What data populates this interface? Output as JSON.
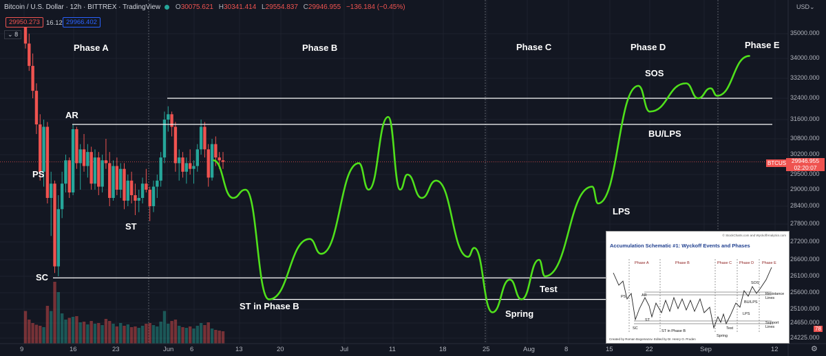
{
  "header": {
    "title": "Bitcoin / U.S. Dollar · 12h · BITTREX · TradingView",
    "ohlc": [
      {
        "key": "O",
        "value": "30075.621"
      },
      {
        "key": "H",
        "value": "30341.414"
      },
      {
        "key": "L",
        "value": "29554.837"
      },
      {
        "key": "C",
        "value": "29946.955"
      }
    ],
    "change": "−136.184 (−0.45%)",
    "sell_price": "29950.273",
    "spread": "16.129",
    "buy_price": "29966.402",
    "indicator_count": "8"
  },
  "axis": {
    "currency": "USD",
    "price_label": "29946.955",
    "countdown": "02:20:07",
    "symbol_tag": "BTCUSD",
    "volume_tag": "78"
  },
  "colors": {
    "background": "#131722",
    "up_candle": "#26a69a",
    "down_candle": "#ef5350",
    "projection": "#4fe01b",
    "level_line": "#ffffff"
  },
  "annotations": {
    "phases": [
      "Phase A",
      "Phase B",
      "Phase C",
      "Phase D",
      "Phase E"
    ],
    "events": {
      "ps": "PS",
      "sc": "SC",
      "ar": "AR",
      "st": "ST",
      "st_phase_b": "ST in Phase B",
      "spring": "Spring",
      "test": "Test",
      "lps": "LPS",
      "bu_lps": "BU/LPS",
      "sos": "SOS"
    }
  },
  "inset": {
    "title": "Accumulation Schematic #1: Wyckoff Events and Phases",
    "source": "© StockCharts.com and WyckoffAnalytics.com",
    "footer": "Created by Roman Bogomazov. Edited by Dr. Henry O. Pruden",
    "phases": [
      "Phase A",
      "Phase B",
      "Phase C",
      "Phase D",
      "Phase E"
    ],
    "labels": [
      "PS",
      "SC",
      "AR",
      "ST",
      "ST in Phase B",
      "Spring",
      "Test",
      "LPS",
      "BU/LPS",
      "SOS",
      "Resistance Lines",
      "Support Lines"
    ]
  },
  "chart_data": {
    "type": "line",
    "series_kind": "candlestick with hand-drawn projection",
    "ylim": [
      24200,
      35600
    ],
    "yticks": [
      24225,
      24650,
      25100,
      25600,
      26100,
      26600,
      27200,
      27800,
      28400,
      29000,
      29500,
      30200,
      30800,
      31600,
      32400,
      33200,
      34000,
      35000
    ],
    "x_ticks": [
      "9",
      "16",
      "23",
      "Jun",
      "6",
      "13",
      "20",
      "Jul",
      "11",
      "18",
      "25",
      "Aug",
      "8",
      "15",
      "22",
      "Sep",
      "12"
    ],
    "levels": [
      {
        "value": 32400
      },
      {
        "value": 31400
      },
      {
        "value": 26050
      },
      {
        "value": 25400
      }
    ],
    "current_price": 29946.955,
    "candles": [
      {
        "o": 35500,
        "h": 35600,
        "l": 34400,
        "c": 34600
      },
      {
        "o": 34600,
        "h": 35000,
        "l": 33500,
        "c": 33700
      },
      {
        "o": 33700,
        "h": 34200,
        "l": 32400,
        "c": 32700
      },
      {
        "o": 32700,
        "h": 33000,
        "l": 31000,
        "c": 31400
      },
      {
        "o": 31400,
        "h": 31800,
        "l": 29300,
        "c": 29600
      },
      {
        "o": 29600,
        "h": 31600,
        "l": 29100,
        "c": 31300
      },
      {
        "o": 31300,
        "h": 31500,
        "l": 28500,
        "c": 28700
      },
      {
        "o": 28700,
        "h": 29600,
        "l": 27400,
        "c": 29200
      },
      {
        "o": 29200,
        "h": 29300,
        "l": 26200,
        "c": 26400
      },
      {
        "o": 26400,
        "h": 28800,
        "l": 26100,
        "c": 28300
      },
      {
        "o": 28300,
        "h": 29600,
        "l": 28000,
        "c": 29200
      },
      {
        "o": 29200,
        "h": 30200,
        "l": 28900,
        "c": 30000
      },
      {
        "o": 30000,
        "h": 30100,
        "l": 28700,
        "c": 28900
      },
      {
        "o": 28900,
        "h": 31400,
        "l": 28800,
        "c": 31200
      },
      {
        "o": 31200,
        "h": 31300,
        "l": 29700,
        "c": 29900
      },
      {
        "o": 29900,
        "h": 30600,
        "l": 29000,
        "c": 30400
      },
      {
        "o": 30400,
        "h": 31000,
        "l": 29600,
        "c": 29800
      },
      {
        "o": 29800,
        "h": 30600,
        "l": 29400,
        "c": 30300
      },
      {
        "o": 30300,
        "h": 30500,
        "l": 29000,
        "c": 29200
      },
      {
        "o": 29200,
        "h": 30400,
        "l": 29000,
        "c": 30100
      },
      {
        "o": 30100,
        "h": 30300,
        "l": 28800,
        "c": 29100
      },
      {
        "o": 29100,
        "h": 30200,
        "l": 28900,
        "c": 30000
      },
      {
        "o": 30000,
        "h": 30800,
        "l": 29700,
        "c": 29900
      },
      {
        "o": 29900,
        "h": 30300,
        "l": 28400,
        "c": 28700
      },
      {
        "o": 28700,
        "h": 30000,
        "l": 28600,
        "c": 29800
      },
      {
        "o": 29800,
        "h": 30100,
        "l": 28800,
        "c": 29000
      },
      {
        "o": 29000,
        "h": 29900,
        "l": 28700,
        "c": 29700
      },
      {
        "o": 29700,
        "h": 29900,
        "l": 28300,
        "c": 28600
      },
      {
        "o": 28600,
        "h": 29500,
        "l": 28400,
        "c": 29300
      },
      {
        "o": 29300,
        "h": 29600,
        "l": 28500,
        "c": 28800
      },
      {
        "o": 28800,
        "h": 29200,
        "l": 28100,
        "c": 28600
      },
      {
        "o": 28600,
        "h": 29000,
        "l": 28200,
        "c": 28700
      },
      {
        "o": 28700,
        "h": 29400,
        "l": 28500,
        "c": 29200
      },
      {
        "o": 29200,
        "h": 29700,
        "l": 28900,
        "c": 29000
      },
      {
        "o": 29000,
        "h": 29100,
        "l": 27900,
        "c": 28400
      },
      {
        "o": 28400,
        "h": 29300,
        "l": 28200,
        "c": 29100
      },
      {
        "o": 29100,
        "h": 29500,
        "l": 28700,
        "c": 29300
      },
      {
        "o": 29300,
        "h": 30300,
        "l": 29100,
        "c": 30100
      },
      {
        "o": 30100,
        "h": 31900,
        "l": 29900,
        "c": 31600
      },
      {
        "o": 31600,
        "h": 32100,
        "l": 31100,
        "c": 31800
      },
      {
        "o": 31800,
        "h": 31900,
        "l": 30900,
        "c": 31300
      },
      {
        "o": 31300,
        "h": 31500,
        "l": 29600,
        "c": 29900
      },
      {
        "o": 29900,
        "h": 30400,
        "l": 29300,
        "c": 30100
      },
      {
        "o": 30100,
        "h": 30300,
        "l": 29400,
        "c": 29600
      },
      {
        "o": 29600,
        "h": 30100,
        "l": 29200,
        "c": 29900
      },
      {
        "o": 29900,
        "h": 30400,
        "l": 29500,
        "c": 29700
      },
      {
        "o": 29700,
        "h": 30000,
        "l": 29200,
        "c": 29800
      },
      {
        "o": 29800,
        "h": 30600,
        "l": 29600,
        "c": 30400
      },
      {
        "o": 30400,
        "h": 31600,
        "l": 30200,
        "c": 31300
      },
      {
        "o": 31300,
        "h": 31500,
        "l": 30100,
        "c": 30400
      },
      {
        "o": 30400,
        "h": 30600,
        "l": 29100,
        "c": 29400
      },
      {
        "o": 29400,
        "h": 30800,
        "l": 29300,
        "c": 30600
      },
      {
        "o": 30600,
        "h": 30900,
        "l": 29800,
        "c": 30100
      },
      {
        "o": 30100,
        "h": 30300,
        "l": 29700,
        "c": 30000
      },
      {
        "o": 30000,
        "h": 30300,
        "l": 29700,
        "c": 29947
      }
    ],
    "volume": [
      95,
      70,
      60,
      55,
      52,
      48,
      110,
      95,
      180,
      150,
      88,
      70,
      75,
      78,
      80,
      62,
      64,
      56,
      66,
      58,
      60,
      54,
      72,
      66,
      58,
      50,
      60,
      52,
      56,
      48,
      50,
      46,
      52,
      58,
      60,
      54,
      50,
      64,
      95,
      58,
      66,
      70,
      52,
      48,
      46,
      50,
      44,
      52,
      60,
      54,
      62,
      44,
      40,
      38,
      36
    ],
    "projection": [
      {
        "date": "Jun 10",
        "price": 30000
      },
      {
        "date": "Jun 13",
        "price": 28700
      },
      {
        "date": "Jun 15",
        "price": 29000
      },
      {
        "date": "Jun 19",
        "price": 25400
      },
      {
        "date": "Jun 26",
        "price": 27300
      },
      {
        "date": "Jun 28",
        "price": 26800
      },
      {
        "date": "Jul 5",
        "price": 29900
      },
      {
        "date": "Jul 7",
        "price": 29000
      },
      {
        "date": "Jul 11",
        "price": 31700
      },
      {
        "date": "Jul 13",
        "price": 29000
      },
      {
        "date": "Jul 14",
        "price": 29500
      },
      {
        "date": "Jul 16",
        "price": 28700
      },
      {
        "date": "Jul 18",
        "price": 29300
      },
      {
        "date": "Jul 23",
        "price": 26700
      },
      {
        "date": "Jul 24",
        "price": 27000
      },
      {
        "date": "Jul 27",
        "price": 25000
      },
      {
        "date": "Jul 30",
        "price": 26000
      },
      {
        "date": "Aug 1",
        "price": 25400
      },
      {
        "date": "Aug 4",
        "price": 26600
      },
      {
        "date": "Aug 5",
        "price": 26100
      },
      {
        "date": "Aug 13",
        "price": 29100
      },
      {
        "date": "Aug 14",
        "price": 28500
      },
      {
        "date": "Aug 21",
        "price": 32900
      },
      {
        "date": "Aug 23",
        "price": 31900
      },
      {
        "date": "Aug 29",
        "price": 33000
      },
      {
        "date": "Aug 31",
        "price": 32400
      },
      {
        "date": "Sep 2",
        "price": 32800
      },
      {
        "date": "Sep 3",
        "price": 32500
      },
      {
        "date": "Sep 8",
        "price": 34100
      }
    ]
  }
}
